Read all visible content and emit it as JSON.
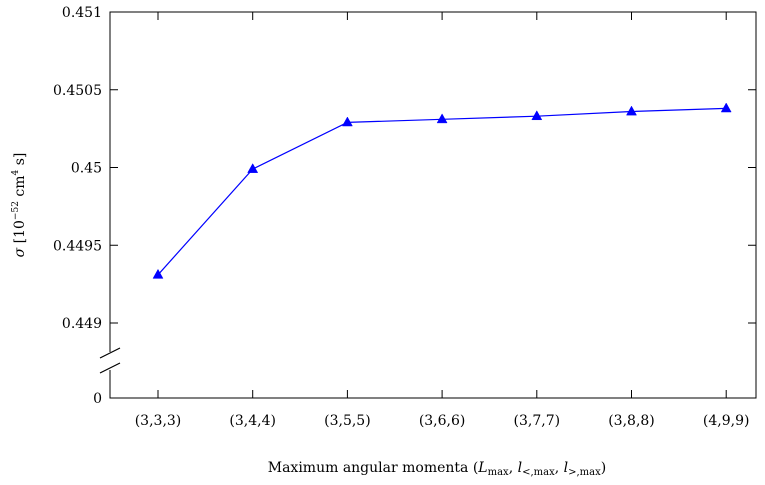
{
  "chart_data": {
    "type": "line",
    "categories": [
      "(3,3,3)",
      "(3,4,4)",
      "(3,5,5)",
      "(3,6,6)",
      "(3,7,7)",
      "(3,8,8)",
      "(4,9,9)"
    ],
    "series": [
      {
        "values": [
          0.44931,
          0.44999,
          0.45029,
          0.45031,
          0.45033,
          0.45036,
          0.45038
        ],
        "color": "#0000ff",
        "marker": "triangle"
      }
    ],
    "y_ticks": [
      {
        "value": 0.449,
        "label": "0.449"
      },
      {
        "value": 0.4495,
        "label": "0.4495"
      },
      {
        "value": 0.45,
        "label": "0.45"
      },
      {
        "value": 0.4505,
        "label": "0.4505"
      },
      {
        "value": 0.451,
        "label": "0.451"
      }
    ],
    "y_break_label": "0",
    "ylim": [
      0.4487,
      0.451
    ],
    "axis_break": true,
    "grid": false,
    "xlabel": {
      "prefix": "Maximum angular momenta (",
      "v1": "L",
      "v1_sub": "max",
      "v2": "l",
      "v2_sub": "<,max",
      "v3": "l",
      "v3_sub": ">,max",
      "sep": ", ",
      "suffix": ")"
    },
    "ylabel": {
      "symbol": "σ",
      "open": " [10",
      "exp": "−52",
      "mid": " cm",
      "exp2": "4",
      "close": " s]"
    }
  }
}
